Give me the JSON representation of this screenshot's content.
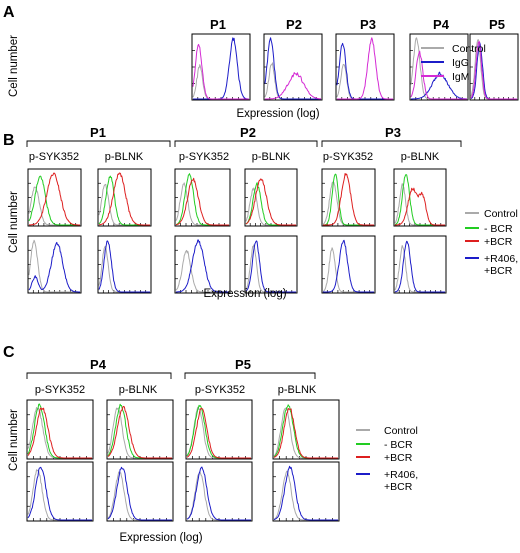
{
  "colors": {
    "control": "#aaaaaa",
    "igg": "#1c1cc8",
    "igm": "#d42ad4",
    "minus_bcr": "#22cc22",
    "plus_bcr": "#dd1f1f",
    "r406": "#1c1cc8"
  },
  "panelA": {
    "letter": "A",
    "ylabel": "Cell number",
    "xlabel": "Expression (log)",
    "plots": [
      "P1",
      "P2",
      "P3",
      "P4",
      "P5"
    ],
    "legend": [
      "Control",
      "IgG",
      "IgM"
    ]
  },
  "panelB": {
    "letter": "B",
    "ylabel": "Cell number",
    "xlabel": "Expression (log)",
    "groups": [
      "P1",
      "P2",
      "P3"
    ],
    "markers": [
      "p-SYK352",
      "p-BLNK"
    ],
    "legend": [
      "Control",
      "- BCR",
      "+BCR",
      "+R406,",
      "+BCR"
    ]
  },
  "panelC": {
    "letter": "C",
    "ylabel": "Cell number",
    "xlabel": "Expression (log)",
    "groups": [
      "P4",
      "P5"
    ],
    "markers": [
      "p-SYK352",
      "p-BLNK"
    ],
    "legend": [
      "Control",
      "- BCR",
      "+BCR",
      "+R406,",
      "+BCR"
    ]
  },
  "chart_data": [
    {
      "type": "line",
      "title": "",
      "xlabel": "Expression (log)",
      "ylabel": "Cell number",
      "x_scale": "log",
      "panels": [
        {
          "title": "P1",
          "series": [
            {
              "name": "Control",
              "peaks": [
                [
                  0.12,
                  0.55,
                  0.05
                ]
              ]
            },
            {
              "name": "IgG",
              "peaks": [
                [
                  0.72,
                  1.0,
                  0.07
                ]
              ]
            },
            {
              "name": "IgM",
              "peaks": [
                [
                  0.1,
                  0.9,
                  0.06
                ]
              ]
            }
          ]
        },
        {
          "title": "P2",
          "series": [
            {
              "name": "Control",
              "peaks": [
                [
                  0.12,
                  0.6,
                  0.05
                ]
              ]
            },
            {
              "name": "IgG",
              "peaks": [
                [
                  0.1,
                  1.0,
                  0.06
                ]
              ]
            },
            {
              "name": "IgM",
              "peaks": [
                [
                  0.55,
                  0.42,
                  0.14
                ]
              ]
            }
          ]
        },
        {
          "title": "P3",
          "series": [
            {
              "name": "Control",
              "peaks": [
                [
                  0.12,
                  0.6,
                  0.05
                ]
              ]
            },
            {
              "name": "IgG",
              "peaks": [
                [
                  0.1,
                  0.92,
                  0.06
                ]
              ]
            },
            {
              "name": "IgM",
              "peaks": [
                [
                  0.62,
                  1.0,
                  0.07
                ]
              ]
            }
          ]
        },
        {
          "title": "P4",
          "series": [
            {
              "name": "Control",
              "peaks": [
                [
                  0.1,
                  1.0,
                  0.06
                ]
              ]
            },
            {
              "name": "IgG",
              "peaks": [
                [
                  0.52,
                  0.42,
                  0.14
                ]
              ]
            },
            {
              "name": "IgM",
              "peaks": [
                [
                  0.15,
                  0.78,
                  0.06
                ]
              ]
            }
          ]
        },
        {
          "title": "P5",
          "series": [
            {
              "name": "Control",
              "peaks": [
                [
                  0.15,
                  1.0,
                  0.06
                ]
              ]
            },
            {
              "name": "IgG",
              "peaks": [
                [
                  0.19,
                  0.92,
                  0.06
                ]
              ]
            },
            {
              "name": "IgM",
              "peaks": [
                [
                  0.17,
                  0.95,
                  0.06
                ]
              ]
            }
          ]
        }
      ]
    },
    {
      "type": "line",
      "title": "",
      "xlabel": "Expression (log)",
      "ylabel": "Cell number",
      "x_scale": "log",
      "panels": [
        {
          "group": "P1",
          "marker": "p-SYK352",
          "row": "top",
          "series": [
            {
              "name": "Control",
              "peaks": [
                [
                  0.12,
                  0.75,
                  0.08
                ]
              ]
            },
            {
              "name": "- BCR",
              "peaks": [
                [
                  0.22,
                  0.95,
                  0.1
                ]
              ]
            },
            {
              "name": "+BCR",
              "peaks": [
                [
                  0.48,
                  1.0,
                  0.13
                ]
              ]
            }
          ]
        },
        {
          "group": "P1",
          "marker": "p-SYK352",
          "row": "bottom",
          "series": [
            {
              "name": "Control",
              "peaks": [
                [
                  0.1,
                  1.0,
                  0.07
                ]
              ]
            },
            {
              "name": "+R406, +BCR",
              "peaks": [
                [
                  0.12,
                  0.3,
                  0.06
                ],
                [
                  0.55,
                  0.95,
                  0.11
                ]
              ]
            }
          ]
        },
        {
          "group": "P1",
          "marker": "p-BLNK",
          "row": "top",
          "series": [
            {
              "name": "Control",
              "peaks": [
                [
                  0.12,
                  0.8,
                  0.07
                ]
              ]
            },
            {
              "name": "- BCR",
              "peaks": [
                [
                  0.22,
                  0.95,
                  0.08
                ]
              ]
            },
            {
              "name": "+BCR",
              "peaks": [
                [
                  0.4,
                  1.0,
                  0.12
                ]
              ]
            }
          ]
        },
        {
          "group": "P1",
          "marker": "p-BLNK",
          "row": "bottom",
          "series": [
            {
              "name": "Control",
              "peaks": [
                [
                  0.12,
                  0.9,
                  0.06
                ]
              ]
            },
            {
              "name": "+R406, +BCR",
              "peaks": [
                [
                  0.17,
                  1.0,
                  0.07
                ]
              ]
            }
          ]
        },
        {
          "group": "P2",
          "marker": "p-SYK352",
          "row": "top",
          "series": [
            {
              "name": "Control",
              "peaks": [
                [
                  0.15,
                  0.8,
                  0.07
                ]
              ]
            },
            {
              "name": "- BCR",
              "peaks": [
                [
                  0.25,
                  1.0,
                  0.08
                ]
              ]
            },
            {
              "name": "+BCR",
              "peaks": [
                [
                  0.32,
                  0.9,
                  0.1
                ]
              ]
            }
          ]
        },
        {
          "group": "P2",
          "marker": "p-SYK352",
          "row": "bottom",
          "series": [
            {
              "name": "Control",
              "peaks": [
                [
                  0.2,
                  0.8,
                  0.08
                ]
              ]
            },
            {
              "name": "+R406, +BCR",
              "peaks": [
                [
                  0.42,
                  1.0,
                  0.11
                ]
              ]
            }
          ]
        },
        {
          "group": "P2",
          "marker": "p-BLNK",
          "row": "top",
          "series": [
            {
              "name": "Control",
              "peaks": [
                [
                  0.15,
                  0.7,
                  0.07
                ]
              ]
            },
            {
              "name": "- BCR",
              "peaks": [
                [
                  0.22,
                  0.8,
                  0.08
                ]
              ]
            },
            {
              "name": "+BCR",
              "peaks": [
                [
                  0.3,
                  0.9,
                  0.11
                ]
              ]
            }
          ]
        },
        {
          "group": "P2",
          "marker": "p-BLNK",
          "row": "bottom",
          "series": [
            {
              "name": "Control",
              "peaks": [
                [
                  0.15,
                  0.9,
                  0.06
                ]
              ]
            },
            {
              "name": "+R406, +BCR",
              "peaks": [
                [
                  0.2,
                  1.0,
                  0.07
                ]
              ]
            }
          ]
        },
        {
          "group": "P3",
          "marker": "p-SYK352",
          "row": "top",
          "series": [
            {
              "name": "Control",
              "peaks": [
                [
                  0.2,
                  0.85,
                  0.07
                ]
              ]
            },
            {
              "name": "- BCR",
              "peaks": [
                [
                  0.24,
                  1.0,
                  0.06
                ]
              ]
            },
            {
              "name": "+BCR",
              "peaks": [
                [
                  0.45,
                  1.0,
                  0.09
                ]
              ]
            }
          ]
        },
        {
          "group": "P3",
          "marker": "p-SYK352",
          "row": "bottom",
          "series": [
            {
              "name": "Control",
              "peaks": [
                [
                  0.18,
                  0.85,
                  0.06
                ]
              ]
            },
            {
              "name": "+R406, +BCR",
              "peaks": [
                [
                  0.4,
                  1.0,
                  0.08
                ]
              ]
            }
          ]
        },
        {
          "group": "P3",
          "marker": "p-BLNK",
          "row": "top",
          "series": [
            {
              "name": "Control",
              "peaks": [
                [
                  0.15,
                  0.8,
                  0.06
                ]
              ]
            },
            {
              "name": "- BCR",
              "peaks": [
                [
                  0.22,
                  1.0,
                  0.07
                ]
              ]
            },
            {
              "name": "+BCR",
              "peaks": [
                [
                  0.35,
                  0.7,
                  0.09
                ],
                [
                  0.55,
                  0.55,
                  0.07
                ]
              ]
            }
          ]
        },
        {
          "group": "P3",
          "marker": "p-BLNK",
          "row": "bottom",
          "series": [
            {
              "name": "Control",
              "peaks": [
                [
                  0.15,
                  0.9,
                  0.06
                ]
              ]
            },
            {
              "name": "+R406, +BCR",
              "peaks": [
                [
                  0.24,
                  1.0,
                  0.07
                ]
              ]
            }
          ]
        }
      ]
    },
    {
      "type": "line",
      "title": "",
      "xlabel": "Expression (log)",
      "ylabel": "Cell number",
      "x_scale": "log",
      "panels": [
        {
          "group": "P4",
          "marker": "p-SYK352",
          "row": "top",
          "series": [
            {
              "name": "Control",
              "peaks": [
                [
                  0.15,
                  0.95,
                  0.08
                ]
              ]
            },
            {
              "name": "- BCR",
              "peaks": [
                [
                  0.18,
                  1.0,
                  0.08
                ]
              ]
            },
            {
              "name": "+BCR",
              "peaks": [
                [
                  0.22,
                  0.95,
                  0.09
                ]
              ]
            }
          ]
        },
        {
          "group": "P4",
          "marker": "p-SYK352",
          "row": "bottom",
          "series": [
            {
              "name": "Control",
              "peaks": [
                [
                  0.15,
                  0.95,
                  0.07
                ]
              ]
            },
            {
              "name": "+R406, +BCR",
              "peaks": [
                [
                  0.2,
                  1.0,
                  0.08
                ]
              ]
            }
          ]
        },
        {
          "group": "P4",
          "marker": "p-BLNK",
          "row": "top",
          "series": [
            {
              "name": "Control",
              "peaks": [
                [
                  0.15,
                  0.95,
                  0.07
                ]
              ]
            },
            {
              "name": "- BCR",
              "peaks": [
                [
                  0.2,
                  1.0,
                  0.08
                ]
              ]
            },
            {
              "name": "+BCR",
              "peaks": [
                [
                  0.24,
                  0.95,
                  0.09
                ]
              ]
            }
          ]
        },
        {
          "group": "P4",
          "marker": "p-BLNK",
          "row": "bottom",
          "series": [
            {
              "name": "Control",
              "peaks": [
                [
                  0.18,
                  0.9,
                  0.07
                ]
              ]
            },
            {
              "name": "+R406, +BCR",
              "peaks": [
                [
                  0.22,
                  1.0,
                  0.08
                ]
              ]
            }
          ]
        },
        {
          "group": "P5",
          "marker": "p-SYK352",
          "row": "top",
          "series": [
            {
              "name": "Control",
              "peaks": [
                [
                  0.18,
                  0.95,
                  0.07
                ]
              ]
            },
            {
              "name": "- BCR",
              "peaks": [
                [
                  0.2,
                  1.0,
                  0.08
                ]
              ]
            },
            {
              "name": "+BCR",
              "peaks": [
                [
                  0.23,
                  0.95,
                  0.08
                ]
              ]
            }
          ]
        },
        {
          "group": "P5",
          "marker": "p-SYK352",
          "row": "bottom",
          "series": [
            {
              "name": "Control",
              "peaks": [
                [
                  0.2,
                  0.9,
                  0.07
                ]
              ]
            },
            {
              "name": "+R406, +BCR",
              "peaks": [
                [
                  0.23,
                  1.0,
                  0.08
                ]
              ]
            }
          ]
        },
        {
          "group": "P5",
          "marker": "p-BLNK",
          "row": "top",
          "series": [
            {
              "name": "Control",
              "peaks": [
                [
                  0.18,
                  0.95,
                  0.07
                ]
              ]
            },
            {
              "name": "- BCR",
              "peaks": [
                [
                  0.22,
                  1.0,
                  0.08
                ]
              ]
            },
            {
              "name": "+BCR",
              "peaks": [
                [
                  0.24,
                  0.95,
                  0.08
                ]
              ]
            }
          ]
        },
        {
          "group": "P5",
          "marker": "p-BLNK",
          "row": "bottom",
          "series": [
            {
              "name": "Control",
              "peaks": [
                [
                  0.2,
                  0.9,
                  0.07
                ]
              ]
            },
            {
              "name": "+R406, +BCR",
              "peaks": [
                [
                  0.25,
                  1.0,
                  0.08
                ]
              ]
            }
          ]
        }
      ]
    }
  ]
}
